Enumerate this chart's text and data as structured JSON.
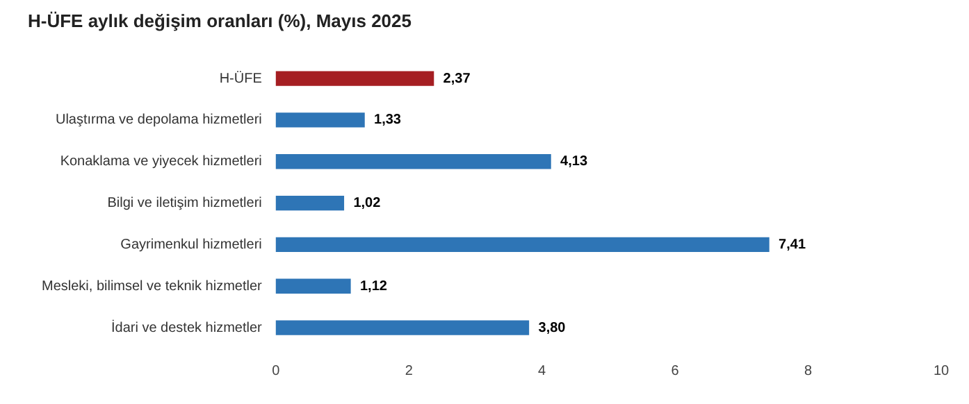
{
  "chart_data": {
    "type": "bar",
    "orientation": "horizontal",
    "title": "H-ÜFE aylık değişim oranları (%), Mayıs 2025",
    "categories": [
      "H-ÜFE",
      "Ulaştırma ve depolama hizmetleri",
      "Konaklama ve yiyecek hizmetleri",
      "Bilgi ve iletişim hizmetleri",
      "Gayrimenkul hizmetleri",
      "Mesleki, bilimsel ve teknik hizmetler",
      "İdari ve destek hizmetler"
    ],
    "values": [
      2.37,
      1.33,
      4.13,
      1.02,
      7.41,
      1.12,
      3.8
    ],
    "colors": [
      "#a51e22",
      "#2e75b6",
      "#2e75b6",
      "#2e75b6",
      "#2e75b6",
      "#2e75b6",
      "#2e75b6"
    ],
    "value_labels": [
      "2,37",
      "1,33",
      "4,13",
      "1,02",
      "7,41",
      "1,12",
      "3,80"
    ],
    "xlim": [
      0,
      10
    ],
    "xticks": [
      0,
      2,
      4,
      6,
      8,
      10
    ],
    "grid": false,
    "legend": false
  }
}
